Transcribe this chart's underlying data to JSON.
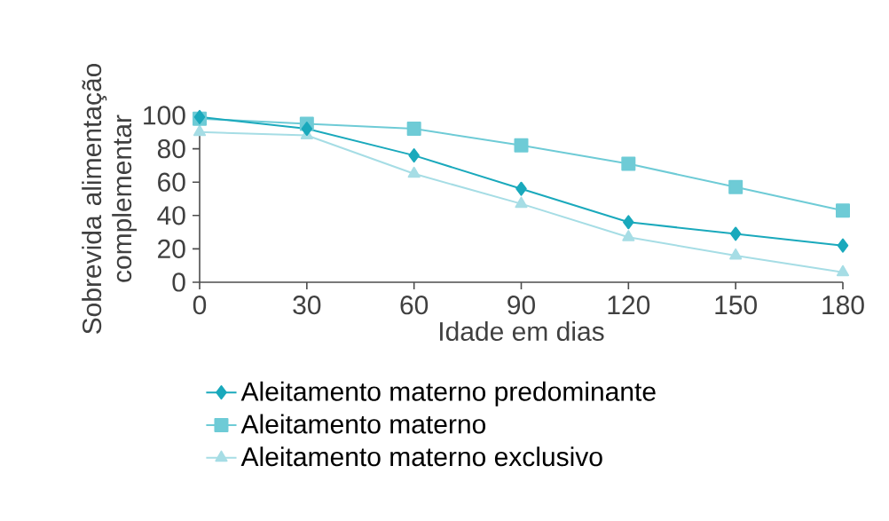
{
  "chart_data": {
    "type": "line",
    "xlabel": "Idade em dias",
    "ylabel": "Sobrevida alimentação complementar",
    "x": [
      0,
      30,
      60,
      90,
      120,
      150,
      180
    ],
    "series": [
      {
        "name": "Aleitamento materno predominante",
        "color": "#1aa9bc",
        "marker": "diamond",
        "values": [
          99,
          92,
          76,
          56,
          36,
          29,
          22
        ]
      },
      {
        "name": "Aleitamento materno",
        "color": "#6ecbd6",
        "marker": "square",
        "values": [
          98,
          95,
          92,
          82,
          71,
          57,
          43
        ]
      },
      {
        "name": "Aleitamento materno exclusivo",
        "color": "#a6dde5",
        "marker": "triangle",
        "values": [
          90,
          88,
          65,
          47,
          27,
          16,
          6
        ]
      }
    ],
    "xlim": [
      0,
      180
    ],
    "ylim": [
      0,
      100
    ],
    "xticks": [
      0,
      30,
      60,
      90,
      120,
      150,
      180
    ],
    "yticks": [
      0,
      20,
      40,
      60,
      80,
      100
    ],
    "grid": false,
    "legend": "bottom",
    "line_style": "solid"
  }
}
